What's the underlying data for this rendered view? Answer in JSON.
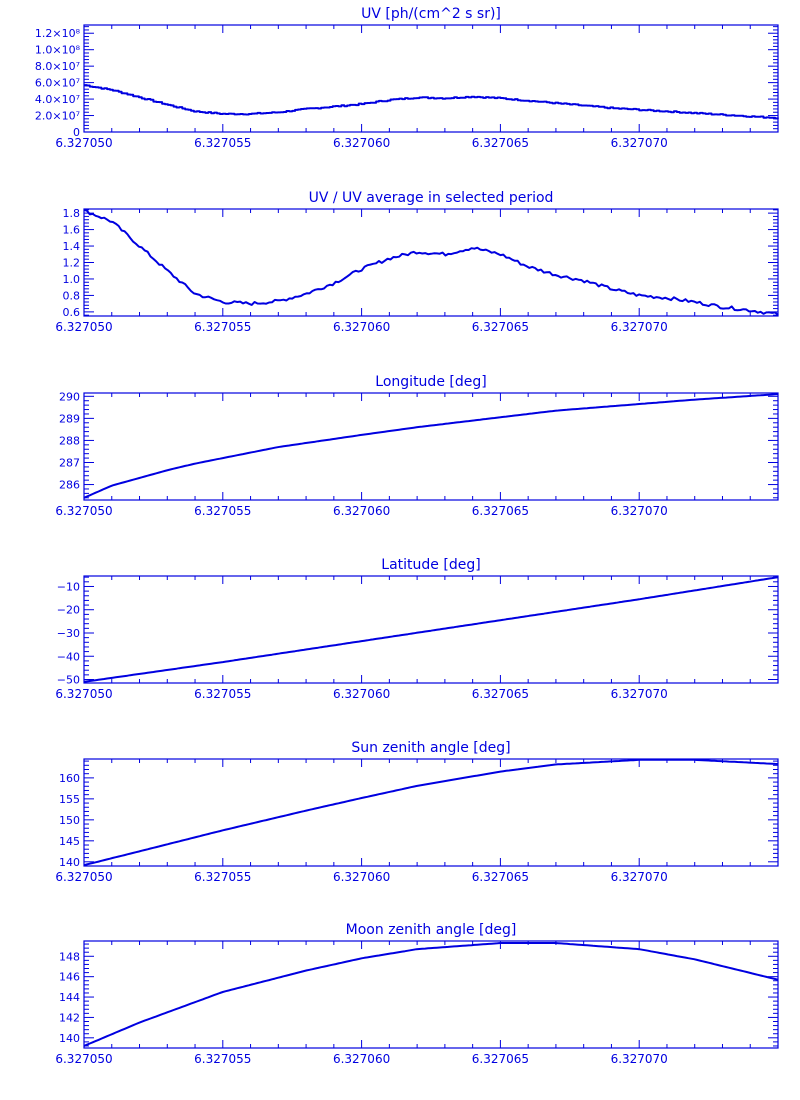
{
  "chart_data": [
    {
      "type": "line",
      "title": "UV [ph/(cm^2 s sr)]",
      "xlim": [
        6.32705,
        6.327075
      ],
      "ylim": [
        0,
        130000000
      ],
      "x_ticks": [
        "6.327050",
        "6.327055",
        "6.327060",
        "6.327065",
        "6.327070"
      ],
      "y_ticks": [
        {
          "value": 0,
          "label": "0"
        },
        {
          "value": 20000000,
          "label": "2.0×10⁷"
        },
        {
          "value": 40000000,
          "label": "4.0×10⁷"
        },
        {
          "value": 60000000,
          "label": "6.0×10⁷"
        },
        {
          "value": 80000000,
          "label": "8.0×10⁷"
        },
        {
          "value": 100000000,
          "label": "1.0×10⁸"
        },
        {
          "value": 120000000,
          "label": "1.2×10⁸"
        }
      ],
      "step": true,
      "series": [
        {
          "x": [
            6.32705,
            6.327051,
            6.327052,
            6.327053,
            6.327054,
            6.327055,
            6.327056,
            6.327057,
            6.327058,
            6.327059,
            6.32706,
            6.327061,
            6.327062,
            6.327063,
            6.327064,
            6.327065,
            6.327066,
            6.327067,
            6.327068,
            6.327069,
            6.32707,
            6.327071,
            6.327072,
            6.327073,
            6.327074,
            6.327075
          ],
          "y": [
            57000000,
            51000000,
            42000000,
            33000000,
            25000000,
            22000000,
            22000000,
            24000000,
            28000000,
            31000000,
            34000000,
            39000000,
            42000000,
            41000000,
            43000000,
            41000000,
            38000000,
            35000000,
            32000000,
            29000000,
            27000000,
            25000000,
            23000000,
            21000000,
            19000000,
            17000000
          ]
        }
      ]
    },
    {
      "type": "line",
      "title": "UV / UV average in selected period",
      "xlim": [
        6.32705,
        6.327075
      ],
      "ylim": [
        0.55,
        1.85
      ],
      "x_ticks": [
        "6.327050",
        "6.327055",
        "6.327060",
        "6.327065",
        "6.327070"
      ],
      "y_ticks": [
        {
          "value": 0.6,
          "label": "0.6"
        },
        {
          "value": 0.8,
          "label": "0.8"
        },
        {
          "value": 1.0,
          "label": "1.0"
        },
        {
          "value": 1.2,
          "label": "1.2"
        },
        {
          "value": 1.4,
          "label": "1.4"
        },
        {
          "value": 1.6,
          "label": "1.6"
        },
        {
          "value": 1.8,
          "label": "1.8"
        }
      ],
      "noise": 0.02,
      "series": [
        {
          "x": [
            6.32705,
            6.327051,
            6.327052,
            6.327053,
            6.327054,
            6.327055,
            6.327056,
            6.327057,
            6.327058,
            6.327059,
            6.32706,
            6.327061,
            6.327062,
            6.327063,
            6.327064,
            6.327065,
            6.327066,
            6.327067,
            6.327068,
            6.327069,
            6.32707,
            6.327071,
            6.327072,
            6.327073,
            6.327074,
            6.327075
          ],
          "y": [
            1.83,
            1.7,
            1.4,
            1.1,
            0.82,
            0.72,
            0.7,
            0.73,
            0.82,
            0.95,
            1.12,
            1.25,
            1.33,
            1.3,
            1.38,
            1.3,
            1.15,
            1.05,
            0.98,
            0.88,
            0.8,
            0.77,
            0.72,
            0.66,
            0.62,
            0.57
          ]
        }
      ]
    },
    {
      "type": "line",
      "title": "Longitude [deg]",
      "xlim": [
        6.32705,
        6.327075
      ],
      "ylim": [
        285.3,
        290.15
      ],
      "x_ticks": [
        "6.327050",
        "6.327055",
        "6.327060",
        "6.327065",
        "6.327070"
      ],
      "y_ticks": [
        {
          "value": 286,
          "label": "286"
        },
        {
          "value": 287,
          "label": "287"
        },
        {
          "value": 288,
          "label": "288"
        },
        {
          "value": 289,
          "label": "289"
        },
        {
          "value": 290,
          "label": "290"
        }
      ],
      "series": [
        {
          "x": [
            6.32705,
            6.327051,
            6.327052,
            6.327053,
            6.327054,
            6.327055,
            6.327057,
            6.32706,
            6.327062,
            6.327065,
            6.327067,
            6.32707,
            6.327072,
            6.327075
          ],
          "y": [
            285.4,
            285.95,
            286.3,
            286.65,
            286.95,
            287.2,
            287.7,
            288.25,
            288.6,
            289.05,
            289.35,
            289.65,
            289.85,
            290.1
          ]
        }
      ]
    },
    {
      "type": "line",
      "title": "Latitude [deg]",
      "xlim": [
        6.32705,
        6.327075
      ],
      "ylim": [
        -51.5,
        -5.5
      ],
      "x_ticks": [
        "6.327050",
        "6.327055",
        "6.327060",
        "6.327065",
        "6.327070"
      ],
      "y_ticks": [
        {
          "value": -50,
          "label": "−50"
        },
        {
          "value": -40,
          "label": "−40"
        },
        {
          "value": -30,
          "label": "−30"
        },
        {
          "value": -20,
          "label": "−20"
        },
        {
          "value": -10,
          "label": "−10"
        }
      ],
      "series": [
        {
          "x": [
            6.32705,
            6.327055,
            6.32706,
            6.327065,
            6.32707,
            6.327075
          ],
          "y": [
            -51,
            -42.5,
            -33.5,
            -24.5,
            -15.5,
            -6
          ]
        }
      ]
    },
    {
      "type": "line",
      "title": "Sun zenith angle [deg]",
      "xlim": [
        6.32705,
        6.327075
      ],
      "ylim": [
        139,
        164.5
      ],
      "x_ticks": [
        "6.327050",
        "6.327055",
        "6.327060",
        "6.327065",
        "6.327070"
      ],
      "y_ticks": [
        {
          "value": 140,
          "label": "140"
        },
        {
          "value": 145,
          "label": "145"
        },
        {
          "value": 150,
          "label": "150"
        },
        {
          "value": 155,
          "label": "155"
        },
        {
          "value": 160,
          "label": "160"
        }
      ],
      "series": [
        {
          "x": [
            6.32705,
            6.327052,
            6.327055,
            6.327058,
            6.32706,
            6.327062,
            6.327065,
            6.327067,
            6.32707,
            6.327072,
            6.327075
          ],
          "y": [
            139.2,
            142.5,
            147.5,
            152.2,
            155.2,
            158.1,
            161.5,
            163.2,
            164.3,
            164.3,
            163.3
          ]
        }
      ]
    },
    {
      "type": "line",
      "title": "Moon zenith angle [deg]",
      "xlim": [
        6.32705,
        6.327075
      ],
      "ylim": [
        139,
        149.5
      ],
      "x_ticks": [
        "6.327050",
        "6.327055",
        "6.327060",
        "6.327065",
        "6.327070"
      ],
      "y_ticks": [
        {
          "value": 140,
          "label": "140"
        },
        {
          "value": 142,
          "label": "142"
        },
        {
          "value": 144,
          "label": "144"
        },
        {
          "value": 146,
          "label": "146"
        },
        {
          "value": 148,
          "label": "148"
        }
      ],
      "series": [
        {
          "x": [
            6.32705,
            6.327052,
            6.327055,
            6.327058,
            6.32706,
            6.327062,
            6.327065,
            6.327067,
            6.32707,
            6.327072,
            6.327075
          ],
          "y": [
            139.2,
            141.5,
            144.5,
            146.6,
            147.8,
            148.7,
            149.3,
            149.3,
            148.7,
            147.7,
            145.7
          ]
        }
      ]
    }
  ]
}
